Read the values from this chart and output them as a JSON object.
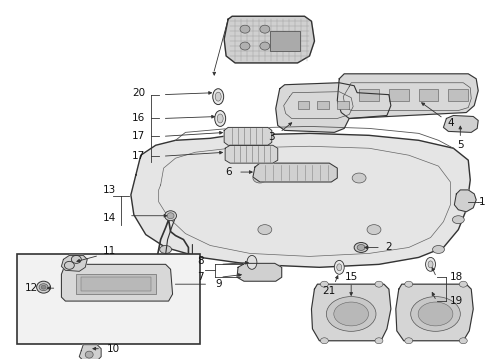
{
  "background_color": "#ffffff",
  "fig_width": 4.89,
  "fig_height": 3.6,
  "dpi": 100,
  "line_color": "#333333",
  "text_color": "#111111",
  "label_fontsize": 7.5,
  "part_fill": "#e8e8e8",
  "part_stroke": "#333333"
}
